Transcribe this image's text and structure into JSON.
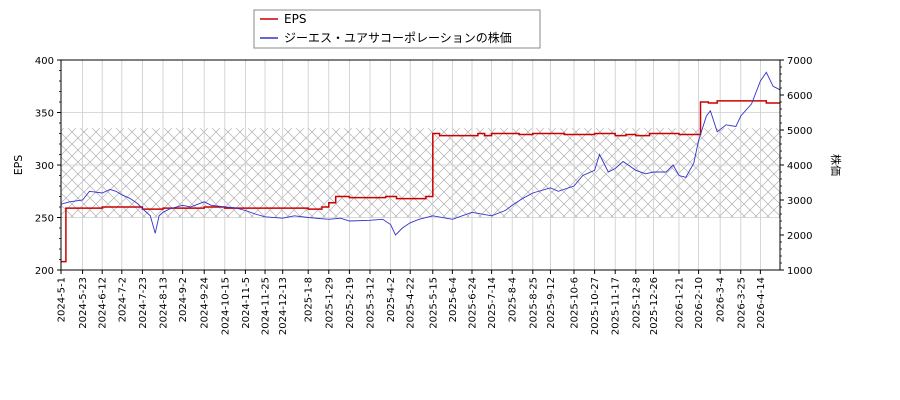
{
  "chart_data": {
    "type": "line",
    "ylabel_left": "EPS",
    "ylabel_right": "株価",
    "ylim_left": [
      200,
      400
    ],
    "yticks_left": [
      200,
      250,
      300,
      350,
      400
    ],
    "ylim_right": [
      1000,
      7000
    ],
    "yticks_right": [
      1000,
      2000,
      3000,
      4000,
      5000,
      6000,
      7000
    ],
    "xlim": [
      "2024-05-01",
      "2026-05-04"
    ],
    "xticks": [
      "2024-5-1",
      "2024-5-23",
      "2024-6-12",
      "2024-7-2",
      "2024-7-23",
      "2024-8-13",
      "2024-9-2",
      "2024-9-24",
      "2024-10-15",
      "2024-11-5",
      "2024-11-25",
      "2024-12-13",
      "2025-1-8",
      "2025-1-29",
      "2025-2-19",
      "2025-3-12",
      "2025-4-2",
      "2025-4-22",
      "2025-5-15",
      "2025-6-4",
      "2025-6-24",
      "2025-7-14",
      "2025-8-4",
      "2025-8-25",
      "2025-9-12",
      "2025-10-6",
      "2025-10-27",
      "2025-11-17",
      "2025-12-8",
      "2025-12-26",
      "2026-1-21",
      "2026-2-10",
      "2026-3-4",
      "2026-3-25",
      "2026-4-14"
    ],
    "grid": true,
    "legend_position": "top-center",
    "shaded_band_right": [
      2500,
      5050
    ],
    "series": [
      {
        "name": "EPS",
        "axis": "left",
        "color": "#cc0000",
        "step": true,
        "points": [
          [
            "2024-05-01",
            208
          ],
          [
            "2024-05-06",
            259
          ],
          [
            "2024-06-12",
            260
          ],
          [
            "2024-07-23",
            258
          ],
          [
            "2024-08-13",
            259
          ],
          [
            "2024-09-24",
            260
          ],
          [
            "2024-10-15",
            259
          ],
          [
            "2024-11-05",
            259
          ],
          [
            "2024-12-13",
            259
          ],
          [
            "2025-01-08",
            258
          ],
          [
            "2025-01-22",
            260
          ],
          [
            "2025-01-29",
            264
          ],
          [
            "2025-02-05",
            270
          ],
          [
            "2025-02-19",
            269
          ],
          [
            "2025-03-12",
            269
          ],
          [
            "2025-03-28",
            270
          ],
          [
            "2025-04-08",
            268
          ],
          [
            "2025-04-22",
            268
          ],
          [
            "2025-05-08",
            270
          ],
          [
            "2025-05-15",
            330
          ],
          [
            "2025-05-22",
            328
          ],
          [
            "2025-06-24",
            328
          ],
          [
            "2025-06-30",
            330
          ],
          [
            "2025-07-07",
            328
          ],
          [
            "2025-07-14",
            330
          ],
          [
            "2025-08-04",
            330
          ],
          [
            "2025-08-11",
            329
          ],
          [
            "2025-08-25",
            330
          ],
          [
            "2025-09-12",
            330
          ],
          [
            "2025-09-26",
            329
          ],
          [
            "2025-10-27",
            330
          ],
          [
            "2025-11-17",
            328
          ],
          [
            "2025-11-28",
            329
          ],
          [
            "2025-12-08",
            328
          ],
          [
            "2025-12-22",
            330
          ],
          [
            "2026-01-21",
            329
          ],
          [
            "2026-02-10",
            329
          ],
          [
            "2026-02-12",
            360
          ],
          [
            "2026-02-20",
            359
          ],
          [
            "2026-03-01",
            361
          ],
          [
            "2026-04-14",
            361
          ],
          [
            "2026-04-20",
            359
          ],
          [
            "2026-05-04",
            359
          ]
        ]
      },
      {
        "name": "ジーエス・ユアサコーポレーションの株価",
        "axis": "right",
        "color": "#3333cc",
        "step": false,
        "points": [
          [
            "2024-05-01",
            2880
          ],
          [
            "2024-05-10",
            2950
          ],
          [
            "2024-05-23",
            3000
          ],
          [
            "2024-05-30",
            3250
          ],
          [
            "2024-06-12",
            3200
          ],
          [
            "2024-06-20",
            3300
          ],
          [
            "2024-06-26",
            3250
          ],
          [
            "2024-07-02",
            3150
          ],
          [
            "2024-07-10",
            3050
          ],
          [
            "2024-07-18",
            2900
          ],
          [
            "2024-07-25",
            2700
          ],
          [
            "2024-07-31",
            2550
          ],
          [
            "2024-08-05",
            2050
          ],
          [
            "2024-08-09",
            2550
          ],
          [
            "2024-08-13",
            2650
          ],
          [
            "2024-08-20",
            2750
          ],
          [
            "2024-09-02",
            2850
          ],
          [
            "2024-09-10",
            2800
          ],
          [
            "2024-09-24",
            2950
          ],
          [
            "2024-10-01",
            2850
          ],
          [
            "2024-10-15",
            2800
          ],
          [
            "2024-10-25",
            2780
          ],
          [
            "2024-11-05",
            2700
          ],
          [
            "2024-11-15",
            2600
          ],
          [
            "2024-11-25",
            2520
          ],
          [
            "2024-12-13",
            2480
          ],
          [
            "2024-12-25",
            2550
          ],
          [
            "2025-01-08",
            2500
          ],
          [
            "2025-01-29",
            2450
          ],
          [
            "2025-02-10",
            2480
          ],
          [
            "2025-02-19",
            2400
          ],
          [
            "2025-03-12",
            2420
          ],
          [
            "2025-03-25",
            2450
          ],
          [
            "2025-04-02",
            2300
          ],
          [
            "2025-04-07",
            2000
          ],
          [
            "2025-04-14",
            2200
          ],
          [
            "2025-04-22",
            2350
          ],
          [
            "2025-05-01",
            2450
          ],
          [
            "2025-05-15",
            2550
          ],
          [
            "2025-06-04",
            2450
          ],
          [
            "2025-06-24",
            2650
          ],
          [
            "2025-07-14",
            2550
          ],
          [
            "2025-07-28",
            2700
          ],
          [
            "2025-08-04",
            2850
          ],
          [
            "2025-08-15",
            3050
          ],
          [
            "2025-08-25",
            3200
          ],
          [
            "2025-09-12",
            3350
          ],
          [
            "2025-09-20",
            3250
          ],
          [
            "2025-10-06",
            3400
          ],
          [
            "2025-10-15",
            3700
          ],
          [
            "2025-10-27",
            3850
          ],
          [
            "2025-11-01",
            4300
          ],
          [
            "2025-11-10",
            3800
          ],
          [
            "2025-11-17",
            3900
          ],
          [
            "2025-11-25",
            4100
          ],
          [
            "2025-12-08",
            3850
          ],
          [
            "2025-12-18",
            3750
          ],
          [
            "2025-12-26",
            3800
          ],
          [
            "2026-01-08",
            3800
          ],
          [
            "2026-01-15",
            4000
          ],
          [
            "2026-01-21",
            3700
          ],
          [
            "2026-01-28",
            3650
          ],
          [
            "2026-02-05",
            4050
          ],
          [
            "2026-02-10",
            4700
          ],
          [
            "2026-02-18",
            5400
          ],
          [
            "2026-02-22",
            5550
          ],
          [
            "2026-03-01",
            4950
          ],
          [
            "2026-03-10",
            5150
          ],
          [
            "2026-03-20",
            5100
          ],
          [
            "2026-03-25",
            5400
          ],
          [
            "2026-04-05",
            5750
          ],
          [
            "2026-04-14",
            6400
          ],
          [
            "2026-04-20",
            6650
          ],
          [
            "2026-04-27",
            6250
          ],
          [
            "2026-05-04",
            6150
          ]
        ]
      }
    ]
  }
}
